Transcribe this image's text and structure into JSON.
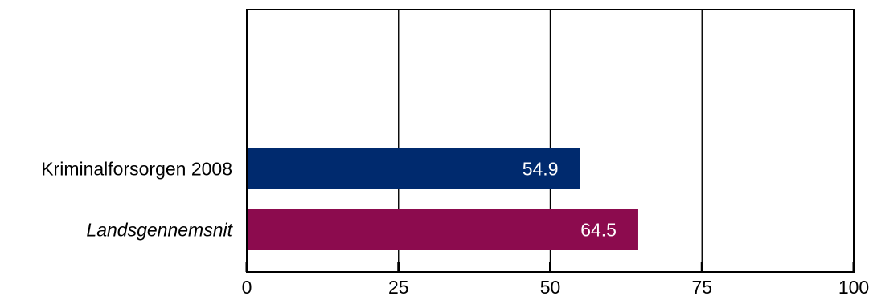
{
  "chart_data": {
    "type": "bar",
    "orientation": "horizontal",
    "categories": [
      "Kriminalforsorgen 2008",
      "Landsgennemsnit"
    ],
    "category_styles": [
      "normal",
      "italic"
    ],
    "values": [
      54.9,
      64.5
    ],
    "value_labels": [
      "54.9",
      "64.5"
    ],
    "colors": [
      "#002a6e",
      "#8c0b4e"
    ],
    "xlim": [
      0,
      100
    ],
    "x_ticks": [
      0,
      25,
      50,
      75,
      100
    ],
    "x_tick_labels": [
      "0",
      "25",
      "50",
      "75",
      "100"
    ],
    "grid": "vertical",
    "legend": "none"
  }
}
